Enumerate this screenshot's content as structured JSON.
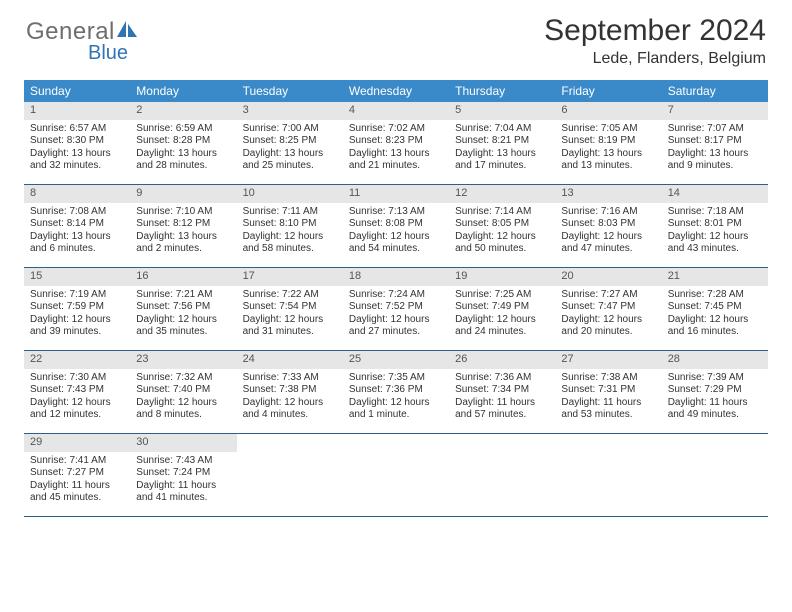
{
  "brand": {
    "general": "General",
    "blue": "Blue"
  },
  "title": "September 2024",
  "location": "Lede, Flanders, Belgium",
  "colors": {
    "header_bg": "#3a8ac9",
    "header_text": "#ffffff",
    "row_border": "#2f5e8a",
    "daynum_bg": "#e6e6e6",
    "body_text": "#333333",
    "logo_gray": "#6e6e6e",
    "logo_blue": "#2f75b5"
  },
  "day_headers": [
    "Sunday",
    "Monday",
    "Tuesday",
    "Wednesday",
    "Thursday",
    "Friday",
    "Saturday"
  ],
  "weeks": [
    [
      {
        "n": "1",
        "sr": "Sunrise: 6:57 AM",
        "ss": "Sunset: 8:30 PM",
        "dl": "Daylight: 13 hours and 32 minutes."
      },
      {
        "n": "2",
        "sr": "Sunrise: 6:59 AM",
        "ss": "Sunset: 8:28 PM",
        "dl": "Daylight: 13 hours and 28 minutes."
      },
      {
        "n": "3",
        "sr": "Sunrise: 7:00 AM",
        "ss": "Sunset: 8:25 PM",
        "dl": "Daylight: 13 hours and 25 minutes."
      },
      {
        "n": "4",
        "sr": "Sunrise: 7:02 AM",
        "ss": "Sunset: 8:23 PM",
        "dl": "Daylight: 13 hours and 21 minutes."
      },
      {
        "n": "5",
        "sr": "Sunrise: 7:04 AM",
        "ss": "Sunset: 8:21 PM",
        "dl": "Daylight: 13 hours and 17 minutes."
      },
      {
        "n": "6",
        "sr": "Sunrise: 7:05 AM",
        "ss": "Sunset: 8:19 PM",
        "dl": "Daylight: 13 hours and 13 minutes."
      },
      {
        "n": "7",
        "sr": "Sunrise: 7:07 AM",
        "ss": "Sunset: 8:17 PM",
        "dl": "Daylight: 13 hours and 9 minutes."
      }
    ],
    [
      {
        "n": "8",
        "sr": "Sunrise: 7:08 AM",
        "ss": "Sunset: 8:14 PM",
        "dl": "Daylight: 13 hours and 6 minutes."
      },
      {
        "n": "9",
        "sr": "Sunrise: 7:10 AM",
        "ss": "Sunset: 8:12 PM",
        "dl": "Daylight: 13 hours and 2 minutes."
      },
      {
        "n": "10",
        "sr": "Sunrise: 7:11 AM",
        "ss": "Sunset: 8:10 PM",
        "dl": "Daylight: 12 hours and 58 minutes."
      },
      {
        "n": "11",
        "sr": "Sunrise: 7:13 AM",
        "ss": "Sunset: 8:08 PM",
        "dl": "Daylight: 12 hours and 54 minutes."
      },
      {
        "n": "12",
        "sr": "Sunrise: 7:14 AM",
        "ss": "Sunset: 8:05 PM",
        "dl": "Daylight: 12 hours and 50 minutes."
      },
      {
        "n": "13",
        "sr": "Sunrise: 7:16 AM",
        "ss": "Sunset: 8:03 PM",
        "dl": "Daylight: 12 hours and 47 minutes."
      },
      {
        "n": "14",
        "sr": "Sunrise: 7:18 AM",
        "ss": "Sunset: 8:01 PM",
        "dl": "Daylight: 12 hours and 43 minutes."
      }
    ],
    [
      {
        "n": "15",
        "sr": "Sunrise: 7:19 AM",
        "ss": "Sunset: 7:59 PM",
        "dl": "Daylight: 12 hours and 39 minutes."
      },
      {
        "n": "16",
        "sr": "Sunrise: 7:21 AM",
        "ss": "Sunset: 7:56 PM",
        "dl": "Daylight: 12 hours and 35 minutes."
      },
      {
        "n": "17",
        "sr": "Sunrise: 7:22 AM",
        "ss": "Sunset: 7:54 PM",
        "dl": "Daylight: 12 hours and 31 minutes."
      },
      {
        "n": "18",
        "sr": "Sunrise: 7:24 AM",
        "ss": "Sunset: 7:52 PM",
        "dl": "Daylight: 12 hours and 27 minutes."
      },
      {
        "n": "19",
        "sr": "Sunrise: 7:25 AM",
        "ss": "Sunset: 7:49 PM",
        "dl": "Daylight: 12 hours and 24 minutes."
      },
      {
        "n": "20",
        "sr": "Sunrise: 7:27 AM",
        "ss": "Sunset: 7:47 PM",
        "dl": "Daylight: 12 hours and 20 minutes."
      },
      {
        "n": "21",
        "sr": "Sunrise: 7:28 AM",
        "ss": "Sunset: 7:45 PM",
        "dl": "Daylight: 12 hours and 16 minutes."
      }
    ],
    [
      {
        "n": "22",
        "sr": "Sunrise: 7:30 AM",
        "ss": "Sunset: 7:43 PM",
        "dl": "Daylight: 12 hours and 12 minutes."
      },
      {
        "n": "23",
        "sr": "Sunrise: 7:32 AM",
        "ss": "Sunset: 7:40 PM",
        "dl": "Daylight: 12 hours and 8 minutes."
      },
      {
        "n": "24",
        "sr": "Sunrise: 7:33 AM",
        "ss": "Sunset: 7:38 PM",
        "dl": "Daylight: 12 hours and 4 minutes."
      },
      {
        "n": "25",
        "sr": "Sunrise: 7:35 AM",
        "ss": "Sunset: 7:36 PM",
        "dl": "Daylight: 12 hours and 1 minute."
      },
      {
        "n": "26",
        "sr": "Sunrise: 7:36 AM",
        "ss": "Sunset: 7:34 PM",
        "dl": "Daylight: 11 hours and 57 minutes."
      },
      {
        "n": "27",
        "sr": "Sunrise: 7:38 AM",
        "ss": "Sunset: 7:31 PM",
        "dl": "Daylight: 11 hours and 53 minutes."
      },
      {
        "n": "28",
        "sr": "Sunrise: 7:39 AM",
        "ss": "Sunset: 7:29 PM",
        "dl": "Daylight: 11 hours and 49 minutes."
      }
    ],
    [
      {
        "n": "29",
        "sr": "Sunrise: 7:41 AM",
        "ss": "Sunset: 7:27 PM",
        "dl": "Daylight: 11 hours and 45 minutes."
      },
      {
        "n": "30",
        "sr": "Sunrise: 7:43 AM",
        "ss": "Sunset: 7:24 PM",
        "dl": "Daylight: 11 hours and 41 minutes."
      },
      null,
      null,
      null,
      null,
      null
    ]
  ]
}
